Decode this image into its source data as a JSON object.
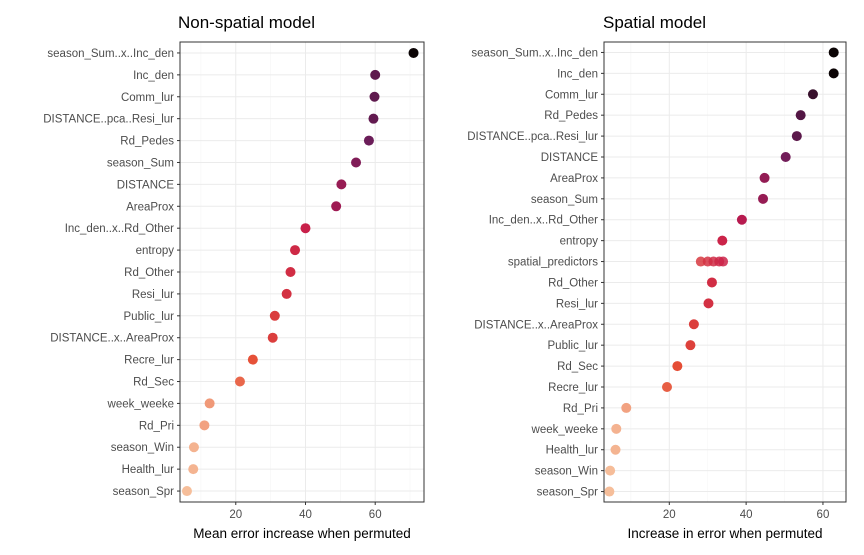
{
  "chart_data": [
    {
      "type": "scatter",
      "title": "Non-spatial model",
      "xlabel": "Mean error increase when permuted",
      "ylabel": "",
      "xlim": [
        4,
        74
      ],
      "xticks": [
        20,
        40,
        60
      ],
      "grid": true,
      "legend": "none",
      "categories": [
        "season_Sum..x..Inc_den",
        "Inc_den",
        "Comm_lur",
        "DISTANCE..pca..Resi_lur",
        "Rd_Pedes",
        "season_Sum",
        "DISTANCE",
        "AreaProx",
        "Inc_den..x..Rd_Other",
        "entropy",
        "Rd_Other",
        "Resi_lur",
        "Public_lur",
        "DISTANCE..x..AreaProx",
        "Recre_lur",
        "Rd_Sec",
        "week_weeke",
        "Rd_Pri",
        "season_Win",
        "Health_lur",
        "season_Spr"
      ],
      "points": [
        {
          "label": "season_Sum..x..Inc_den",
          "values": [
            71
          ]
        },
        {
          "label": "Inc_den",
          "values": [
            60
          ]
        },
        {
          "label": "Comm_lur",
          "values": [
            59.8
          ]
        },
        {
          "label": "DISTANCE..pca..Resi_lur",
          "values": [
            59.5
          ]
        },
        {
          "label": "Rd_Pedes",
          "values": [
            58.2
          ]
        },
        {
          "label": "season_Sum",
          "values": [
            54.5
          ]
        },
        {
          "label": "DISTANCE",
          "values": [
            50.3
          ]
        },
        {
          "label": "AreaProx",
          "values": [
            48.8
          ]
        },
        {
          "label": "Inc_den..x..Rd_Other",
          "values": [
            40
          ]
        },
        {
          "label": "entropy",
          "values": [
            37
          ]
        },
        {
          "label": "Rd_Other",
          "values": [
            35.7
          ]
        },
        {
          "label": "Resi_lur",
          "values": [
            34.6
          ]
        },
        {
          "label": "Public_lur",
          "values": [
            31.2
          ]
        },
        {
          "label": "DISTANCE..x..AreaProx",
          "values": [
            30.6
          ]
        },
        {
          "label": "Recre_lur",
          "values": [
            24.9
          ]
        },
        {
          "label": "Rd_Sec",
          "values": [
            21.2
          ]
        },
        {
          "label": "week_weeke",
          "values": [
            12.5
          ]
        },
        {
          "label": "Rd_Pri",
          "values": [
            11
          ]
        },
        {
          "label": "season_Win",
          "values": [
            8
          ]
        },
        {
          "label": "Health_lur",
          "values": [
            7.8
          ]
        },
        {
          "label": "season_Spr",
          "values": [
            6
          ]
        }
      ]
    },
    {
      "type": "scatter",
      "title": "Spatial model",
      "xlabel": "Increase in error when permuted",
      "ylabel": "",
      "xlim": [
        3,
        66
      ],
      "xticks": [
        20,
        40,
        60
      ],
      "grid": true,
      "legend": "none",
      "categories": [
        "season_Sum..x..Inc_den",
        "Inc_den",
        "Comm_lur",
        "Rd_Pedes",
        "DISTANCE..pca..Resi_lur",
        "DISTANCE",
        "AreaProx",
        "season_Sum",
        "Inc_den..x..Rd_Other",
        "entropy",
        "spatial_predictors",
        "Rd_Other",
        "Resi_lur",
        "DISTANCE..x..AreaProx",
        "Public_lur",
        "Rd_Sec",
        "Recre_lur",
        "Rd_Pri",
        "week_weeke",
        "Health_lur",
        "season_Win",
        "season_Spr"
      ],
      "points": [
        {
          "label": "season_Sum..x..Inc_den",
          "values": [
            62.8
          ]
        },
        {
          "label": "Inc_den",
          "values": [
            62.8
          ]
        },
        {
          "label": "Comm_lur",
          "values": [
            57.4
          ]
        },
        {
          "label": "Rd_Pedes",
          "values": [
            54.2
          ]
        },
        {
          "label": "DISTANCE..pca..Resi_lur",
          "values": [
            53.2
          ]
        },
        {
          "label": "DISTANCE",
          "values": [
            50.3
          ]
        },
        {
          "label": "AreaProx",
          "values": [
            44.8
          ]
        },
        {
          "label": "season_Sum",
          "values": [
            44.4
          ]
        },
        {
          "label": "Inc_den..x..Rd_Other",
          "values": [
            38.9
          ]
        },
        {
          "label": "entropy",
          "values": [
            33.8
          ]
        },
        {
          "label": "spatial_predictors",
          "values": [
            28.2,
            30.0,
            31.5,
            33.0,
            34.0
          ]
        },
        {
          "label": "Rd_Other",
          "values": [
            31.1
          ]
        },
        {
          "label": "Resi_lur",
          "values": [
            30.2
          ]
        },
        {
          "label": "DISTANCE..x..AreaProx",
          "values": [
            26.4
          ]
        },
        {
          "label": "Public_lur",
          "values": [
            25.5
          ]
        },
        {
          "label": "Rd_Sec",
          "values": [
            22.1
          ]
        },
        {
          "label": "Recre_lur",
          "values": [
            19.4
          ]
        },
        {
          "label": "Rd_Pri",
          "values": [
            8.8
          ]
        },
        {
          "label": "week_weeke",
          "values": [
            6.2
          ]
        },
        {
          "label": "Health_lur",
          "values": [
            6.0
          ]
        },
        {
          "label": "season_Win",
          "values": [
            4.6
          ]
        },
        {
          "label": "season_Spr",
          "values": [
            4.4
          ]
        }
      ]
    }
  ],
  "colors": {
    "palette_low": "#f6be9a",
    "palette_mid_low": "#e54e35",
    "palette_mid": "#c51a4d",
    "palette_mid_high": "#6d1d5a",
    "palette_high": "#0b0405",
    "frame": "#333333",
    "grid": "#ebebeb"
  }
}
